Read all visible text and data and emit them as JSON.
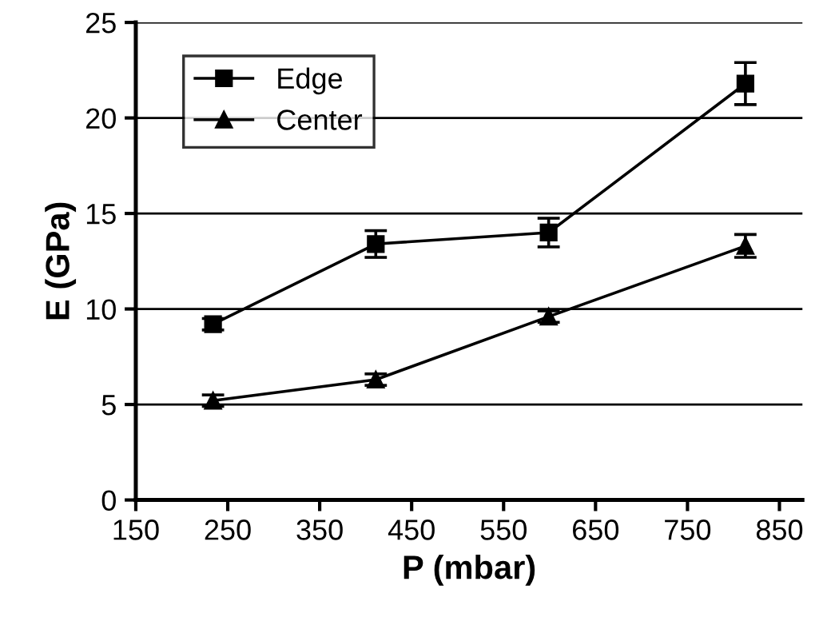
{
  "chart_data": {
    "type": "line",
    "xlabel": "P (mbar)",
    "ylabel": "E (GPa)",
    "xlim": [
      150,
      875
    ],
    "xticks": [
      150,
      250,
      350,
      450,
      550,
      650,
      750,
      850
    ],
    "ylim": [
      0,
      25
    ],
    "yticks": [
      0,
      5,
      10,
      15,
      20,
      25
    ],
    "grid": "y",
    "legend": "top left",
    "series": [
      {
        "name": "Edge",
        "color": "#000000",
        "marker": "square",
        "x": [
          234,
          411,
          599,
          813
        ],
        "values": [
          9.2,
          13.4,
          14.0,
          21.8
        ],
        "errors": [
          0.3,
          0.7,
          0.75,
          1.1
        ]
      },
      {
        "name": "Center",
        "color": "#000000",
        "marker": "triangle",
        "x": [
          234,
          411,
          599,
          813
        ],
        "values": [
          5.2,
          6.3,
          9.6,
          13.3
        ],
        "errors": [
          0.3,
          0.3,
          0.3,
          0.6
        ]
      }
    ]
  }
}
